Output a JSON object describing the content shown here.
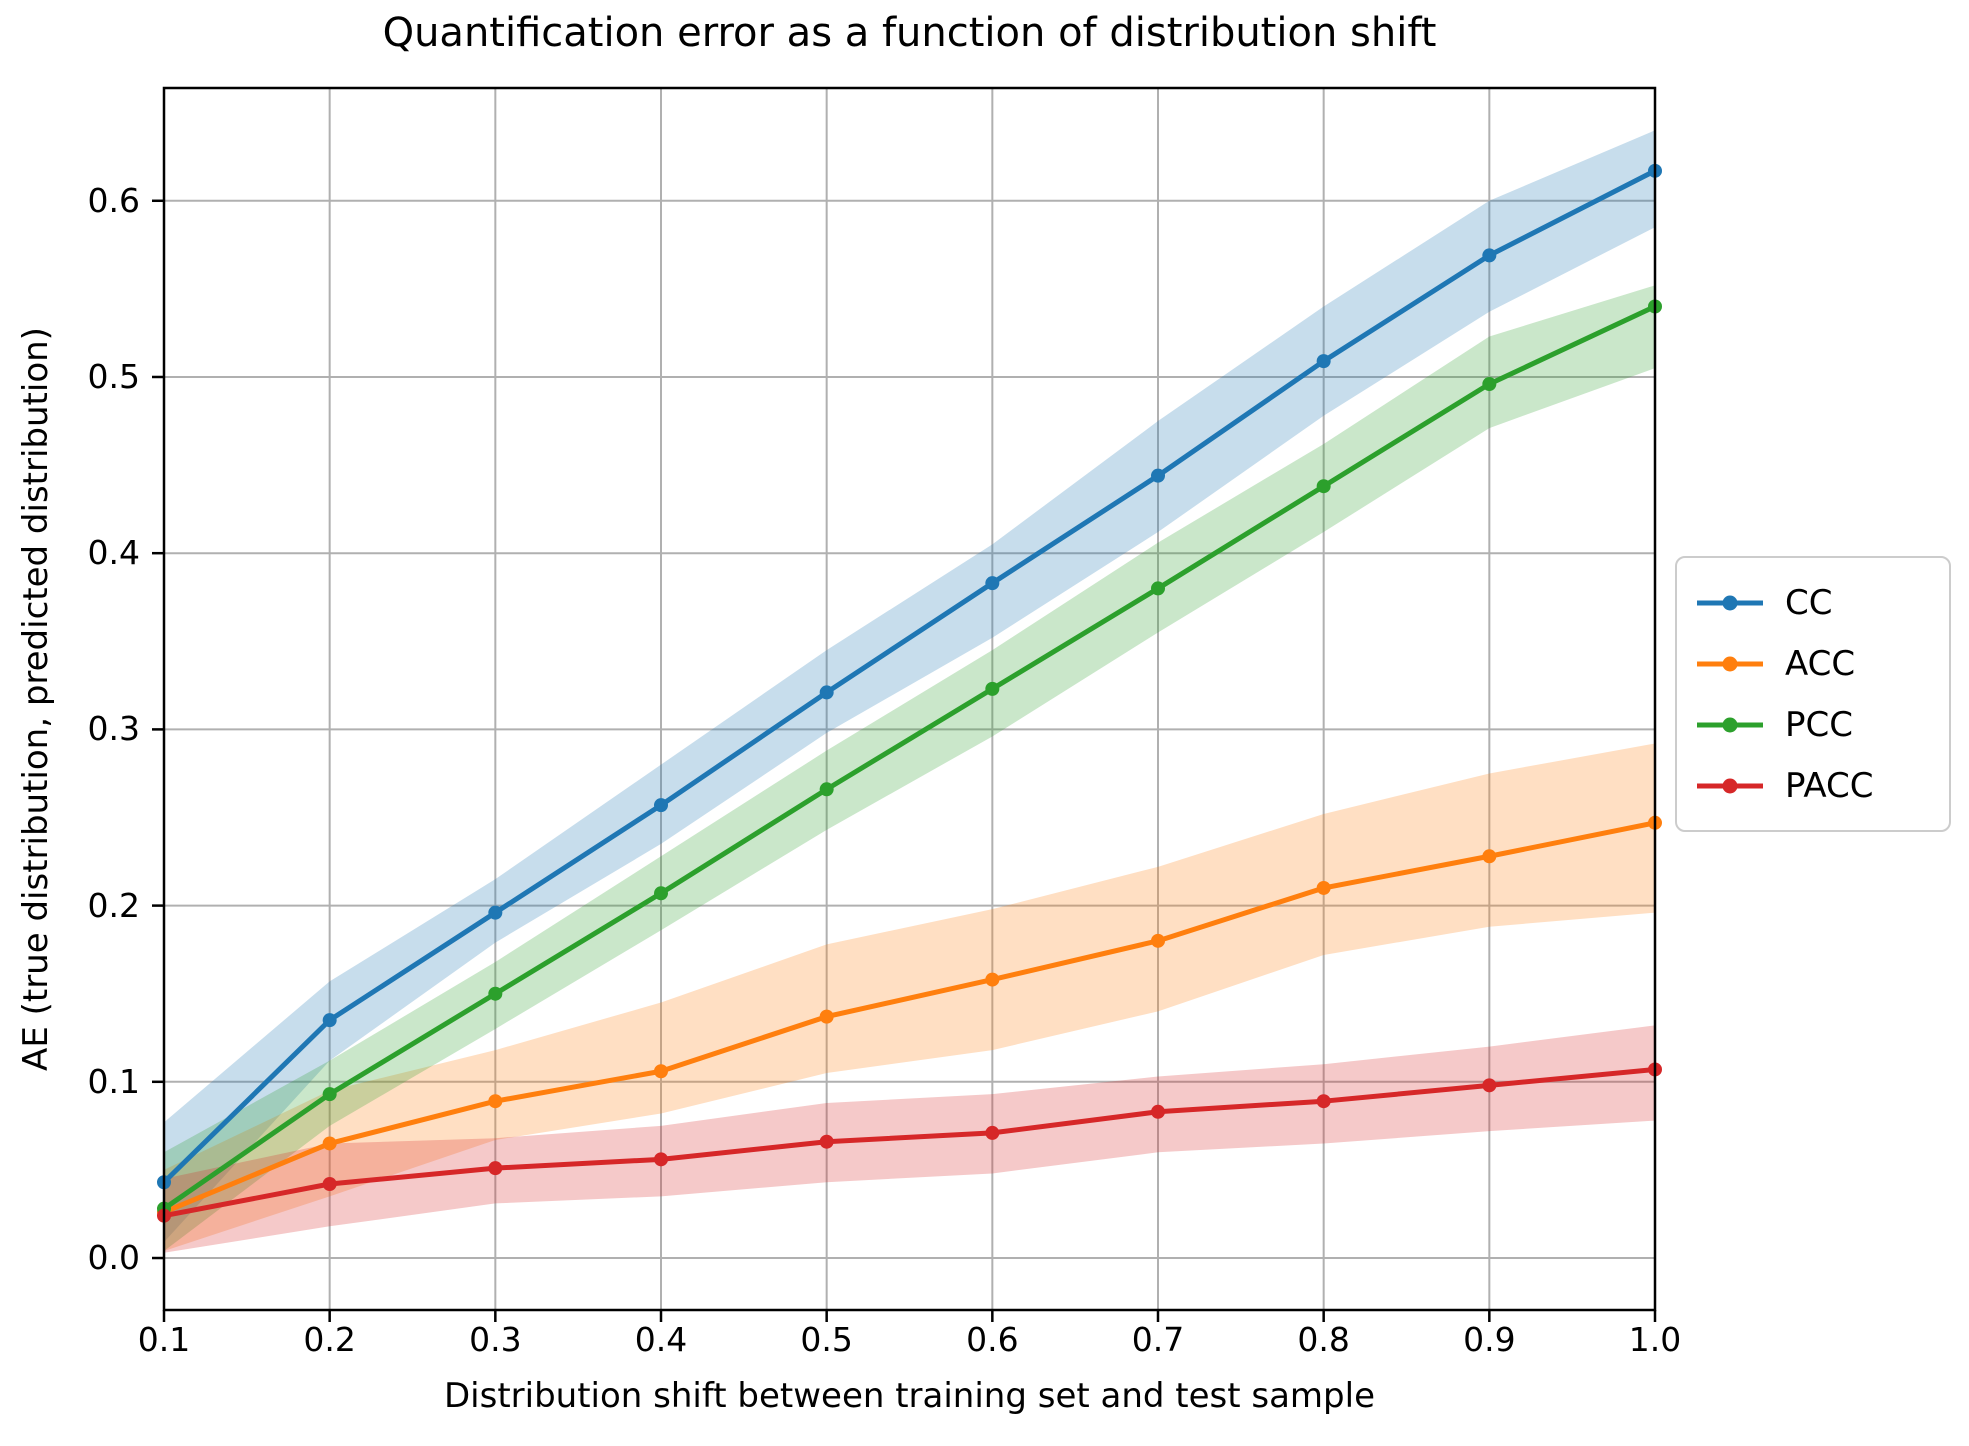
{
  "chart_data": {
    "type": "line",
    "title": "Quantification error as a function of distribution shift",
    "xlabel": "Distribution shift between training set and test sample",
    "ylabel": "AE (true distribution, predicted distribution)",
    "x": [
      0.1,
      0.2,
      0.3,
      0.4,
      0.5,
      0.6,
      0.7,
      0.8,
      0.9,
      1.0
    ],
    "xtick_labels": [
      "0.1",
      "0.2",
      "0.3",
      "0.4",
      "0.5",
      "0.6",
      "0.7",
      "0.8",
      "0.9",
      "1.0"
    ],
    "ytick_labels": [
      "0.0",
      "0.1",
      "0.2",
      "0.3",
      "0.4",
      "0.5",
      "0.6"
    ],
    "ytick_values": [
      0.0,
      0.1,
      0.2,
      0.3,
      0.4,
      0.5,
      0.6
    ],
    "xlim": [
      0.1,
      1.0
    ],
    "ylim": [
      -0.0295,
      0.664
    ],
    "grid": true,
    "grid_color": "#b0b0b0",
    "spine_color": "#000000",
    "band_opacity": 0.25,
    "legend_position": "right of axes, vertically centered",
    "series": [
      {
        "name": "CC",
        "color": "#1f77b4",
        "values": [
          0.043,
          0.135,
          0.196,
          0.257,
          0.321,
          0.383,
          0.444,
          0.509,
          0.569,
          0.617
        ],
        "band_lo": [
          0.009,
          0.112,
          0.179,
          0.235,
          0.298,
          0.352,
          0.412,
          0.478,
          0.537,
          0.585
        ],
        "band_hi": [
          0.077,
          0.157,
          0.215,
          0.28,
          0.345,
          0.405,
          0.475,
          0.54,
          0.6,
          0.64
        ]
      },
      {
        "name": "ACC",
        "color": "#ff7f0e",
        "values": [
          0.026,
          0.065,
          0.089,
          0.106,
          0.137,
          0.158,
          0.18,
          0.21,
          0.228,
          0.247
        ],
        "band_lo": [
          0.004,
          0.035,
          0.067,
          0.082,
          0.105,
          0.118,
          0.14,
          0.172,
          0.188,
          0.196
        ],
        "band_hi": [
          0.05,
          0.095,
          0.118,
          0.145,
          0.178,
          0.198,
          0.222,
          0.252,
          0.275,
          0.292
        ]
      },
      {
        "name": "PCC",
        "color": "#2ca02c",
        "values": [
          0.028,
          0.093,
          0.15,
          0.207,
          0.266,
          0.323,
          0.38,
          0.438,
          0.496,
          0.54
        ],
        "band_lo": [
          0.004,
          0.075,
          0.13,
          0.186,
          0.243,
          0.296,
          0.355,
          0.412,
          0.471,
          0.505
        ],
        "band_hi": [
          0.06,
          0.112,
          0.168,
          0.228,
          0.288,
          0.345,
          0.406,
          0.462,
          0.523,
          0.552
        ]
      },
      {
        "name": "PACC",
        "color": "#d62728",
        "values": [
          0.024,
          0.042,
          0.051,
          0.056,
          0.066,
          0.071,
          0.083,
          0.089,
          0.098,
          0.107
        ],
        "band_lo": [
          0.003,
          0.018,
          0.031,
          0.035,
          0.043,
          0.048,
          0.06,
          0.065,
          0.072,
          0.078
        ],
        "band_hi": [
          0.045,
          0.065,
          0.068,
          0.075,
          0.088,
          0.093,
          0.103,
          0.11,
          0.12,
          0.132
        ]
      }
    ]
  }
}
